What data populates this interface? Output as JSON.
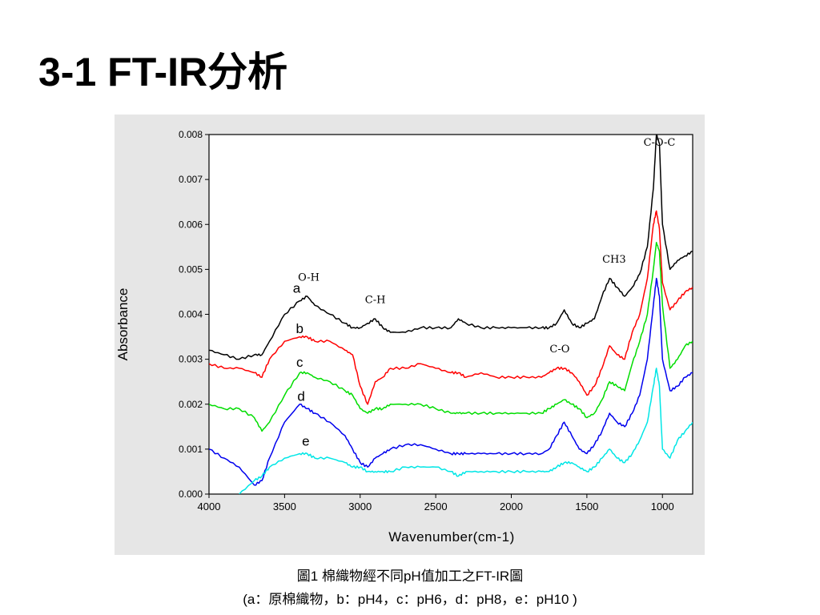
{
  "slide": {
    "title": "3-1 FT-IR分析",
    "caption_line1": "圖1 棉織物經不同pH值加工之FT-IR圖",
    "caption_line2": "(a：原棉織物，b：pH4，c：pH6，d：pH8，e：pH10 )"
  },
  "chart_data": {
    "type": "line",
    "xlabel": "Wavenumber(cm-1)",
    "ylabel": "Absorbance",
    "xlim": [
      4000,
      800
    ],
    "ylim": [
      0,
      0.008
    ],
    "x_ticks": [
      "4000",
      "3500",
      "3000",
      "2500",
      "2000",
      "1500",
      "1000"
    ],
    "y_ticks": [
      "0.000",
      "0.001",
      "0.002",
      "0.003",
      "0.004",
      "0.005",
      "0.006",
      "0.007",
      "0.008"
    ],
    "grid": false,
    "x": [
      4000,
      3900,
      3800,
      3700,
      3650,
      3600,
      3500,
      3400,
      3350,
      3300,
      3200,
      3100,
      3050,
      3000,
      2950,
      2900,
      2850,
      2800,
      2700,
      2600,
      2500,
      2400,
      2350,
      2300,
      2200,
      2100,
      2000,
      1900,
      1800,
      1750,
      1700,
      1650,
      1600,
      1550,
      1500,
      1450,
      1400,
      1350,
      1300,
      1250,
      1200,
      1150,
      1100,
      1060,
      1040,
      1020,
      1000,
      950,
      900,
      850,
      800
    ],
    "series": [
      {
        "name": "a",
        "color": "#000000",
        "values": [
          0.0032,
          0.0031,
          0.003,
          0.0031,
          0.0031,
          0.0034,
          0.004,
          0.0043,
          0.0044,
          0.0042,
          0.004,
          0.0038,
          0.0037,
          0.0037,
          0.0038,
          0.0039,
          0.0037,
          0.0036,
          0.0036,
          0.0037,
          0.0037,
          0.0037,
          0.0039,
          0.0038,
          0.0037,
          0.0037,
          0.0037,
          0.0037,
          0.0037,
          0.0037,
          0.0038,
          0.0041,
          0.0038,
          0.0037,
          0.0038,
          0.0039,
          0.0044,
          0.0048,
          0.0046,
          0.0044,
          0.0046,
          0.0049,
          0.0055,
          0.0068,
          0.008,
          0.0078,
          0.006,
          0.005,
          0.0052,
          0.0053,
          0.0054
        ]
      },
      {
        "name": "b",
        "color": "#ff0000",
        "values": [
          0.0029,
          0.0028,
          0.0028,
          0.0027,
          0.0026,
          0.003,
          0.0034,
          0.0035,
          0.0035,
          0.0034,
          0.0034,
          0.0032,
          0.0031,
          0.0024,
          0.002,
          0.0025,
          0.0026,
          0.0028,
          0.0028,
          0.0029,
          0.0028,
          0.0027,
          0.0027,
          0.0026,
          0.0027,
          0.0026,
          0.0026,
          0.0026,
          0.0026,
          0.0027,
          0.0028,
          0.0028,
          0.0027,
          0.0025,
          0.0022,
          0.0024,
          0.0028,
          0.0033,
          0.0031,
          0.003,
          0.0036,
          0.004,
          0.0048,
          0.006,
          0.0063,
          0.0059,
          0.0047,
          0.0041,
          0.0043,
          0.0045,
          0.0046
        ]
      },
      {
        "name": "c",
        "color": "#00dd00",
        "values": [
          0.002,
          0.0019,
          0.0019,
          0.0017,
          0.0014,
          0.0016,
          0.0022,
          0.0027,
          0.0027,
          0.0026,
          0.0025,
          0.0023,
          0.0022,
          0.0019,
          0.0018,
          0.0019,
          0.0019,
          0.002,
          0.002,
          0.002,
          0.0019,
          0.0018,
          0.0018,
          0.0018,
          0.0018,
          0.0018,
          0.0018,
          0.0018,
          0.0018,
          0.0019,
          0.002,
          0.0021,
          0.002,
          0.0019,
          0.0017,
          0.0018,
          0.0021,
          0.0025,
          0.0024,
          0.0023,
          0.0029,
          0.0034,
          0.004,
          0.005,
          0.0056,
          0.0054,
          0.0042,
          0.0028,
          0.003,
          0.0033,
          0.0034
        ]
      },
      {
        "name": "d",
        "color": "#0000ee",
        "values": [
          0.001,
          0.0008,
          0.0006,
          0.0002,
          0.0003,
          0.0008,
          0.0016,
          0.002,
          0.0019,
          0.0018,
          0.0016,
          0.0013,
          0.001,
          0.0007,
          0.0006,
          0.0008,
          0.0009,
          0.001,
          0.0011,
          0.0011,
          0.001,
          0.0009,
          0.0009,
          0.0009,
          0.0009,
          0.0009,
          0.0009,
          0.0009,
          0.0009,
          0.001,
          0.0013,
          0.0016,
          0.0013,
          0.001,
          0.0009,
          0.0011,
          0.0014,
          0.0018,
          0.0016,
          0.0015,
          0.0018,
          0.0022,
          0.003,
          0.0042,
          0.0048,
          0.0044,
          0.003,
          0.0023,
          0.0024,
          0.0026,
          0.0027
        ]
      },
      {
        "name": "e",
        "color": "#00e6e6",
        "values": [
          null,
          null,
          0.0,
          0.0003,
          0.0004,
          0.0006,
          0.0008,
          0.0009,
          0.0009,
          0.0008,
          0.0008,
          0.0007,
          0.0006,
          0.0006,
          0.0005,
          0.0005,
          0.0005,
          0.0005,
          0.0006,
          0.0006,
          0.0006,
          0.0005,
          0.0004,
          0.0005,
          0.0005,
          0.0005,
          0.0005,
          0.0005,
          0.0005,
          0.0005,
          0.0006,
          0.0007,
          0.0007,
          0.0006,
          0.0005,
          0.0006,
          0.0008,
          0.001,
          0.0008,
          0.0007,
          0.0009,
          0.0012,
          0.0016,
          0.0024,
          0.0028,
          0.0024,
          0.001,
          0.0008,
          0.0012,
          0.0014,
          0.0016
        ]
      }
    ],
    "annotations": [
      {
        "text": "C-O-C",
        "x": 1020,
        "y": 0.00775
      },
      {
        "text": "CH3",
        "x": 1320,
        "y": 0.00515
      },
      {
        "text": "O-H",
        "x": 3340,
        "y": 0.00475
      },
      {
        "text": "C-H",
        "x": 2900,
        "y": 0.00425
      },
      {
        "text": "C-O",
        "x": 1680,
        "y": 0.00315
      }
    ]
  }
}
